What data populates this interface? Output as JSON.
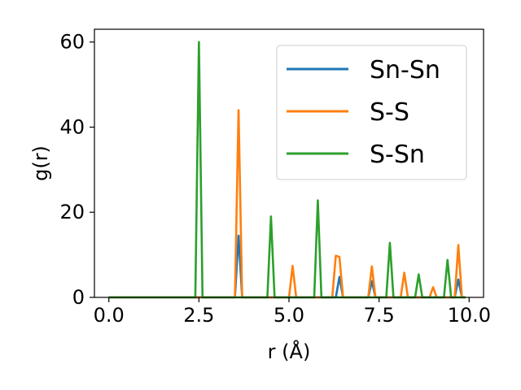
{
  "chart_data": {
    "type": "line",
    "title": "",
    "xlabel": "r (Å)",
    "ylabel": "g(r)",
    "xlim": [
      -0.4,
      10.4
    ],
    "ylim": [
      0,
      63
    ],
    "xticks": [
      0.0,
      2.5,
      5.0,
      7.5,
      10.0
    ],
    "xtick_labels": [
      "0.0",
      "2.5",
      "5.0",
      "7.5",
      "10.0"
    ],
    "yticks": [
      0,
      20,
      40,
      60
    ],
    "ytick_labels": [
      "0",
      "20",
      "40",
      "60"
    ],
    "grid": false,
    "legend_position": "top-right",
    "series": [
      {
        "name": "Sn-Sn",
        "color": "#1f77b4",
        "x": [
          0.0,
          3.5,
          3.6,
          3.7,
          6.3,
          6.4,
          6.5,
          7.2,
          7.3,
          7.4,
          9.6,
          9.7,
          9.8,
          9.9
        ],
        "y": [
          0,
          0,
          14.5,
          0,
          0,
          4.8,
          0,
          0,
          3.8,
          0,
          0,
          4.2,
          0,
          0
        ]
      },
      {
        "name": "S-S",
        "color": "#ff7f0e",
        "x": [
          0.0,
          3.5,
          3.6,
          3.7,
          5.0,
          5.1,
          5.2,
          6.2,
          6.3,
          6.4,
          6.5,
          7.2,
          7.3,
          7.4,
          8.1,
          8.2,
          8.3,
          8.9,
          9.0,
          9.1,
          9.6,
          9.7,
          9.8,
          9.9
        ],
        "y": [
          0,
          0,
          44,
          0,
          0,
          7.4,
          0,
          0,
          9.8,
          9.5,
          0,
          0,
          7.3,
          0,
          0,
          5.8,
          0,
          0,
          2.4,
          0,
          0,
          12.3,
          0,
          0
        ]
      },
      {
        "name": "S-Sn",
        "color": "#2ca02c",
        "x": [
          0.0,
          2.4,
          2.5,
          2.6,
          4.4,
          4.5,
          4.6,
          5.7,
          5.8,
          5.9,
          7.7,
          7.8,
          7.9,
          8.5,
          8.6,
          8.7,
          9.3,
          9.4,
          9.5,
          9.9
        ],
        "y": [
          0,
          0,
          60,
          0,
          0,
          19,
          0,
          0,
          22.8,
          0,
          0,
          12.8,
          0,
          0,
          5.4,
          0,
          0,
          8.8,
          0,
          0
        ]
      }
    ]
  }
}
